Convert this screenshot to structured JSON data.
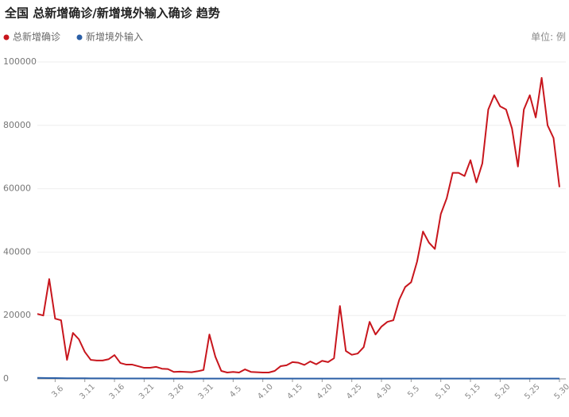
{
  "chart_data": {
    "type": "line",
    "title": "全国 总新增确诊/新增境外输入确诊 趋势",
    "unit": "单位: 例",
    "categories": [
      null,
      null,
      null,
      "3.6",
      null,
      null,
      null,
      null,
      "3.11",
      null,
      null,
      null,
      null,
      "3.16",
      null,
      null,
      null,
      null,
      "3.21",
      null,
      null,
      null,
      null,
      "3.26",
      null,
      null,
      null,
      null,
      "3.31",
      null,
      null,
      null,
      null,
      "4.5",
      null,
      null,
      null,
      null,
      "4.10",
      null,
      null,
      null,
      null,
      "4.15",
      null,
      null,
      null,
      null,
      "4.20",
      null,
      null,
      null,
      null,
      "4.25",
      null,
      null,
      null,
      null,
      "4.30",
      null,
      null,
      null,
      null,
      "5.5",
      null,
      null,
      null,
      null,
      "5.10",
      null,
      null,
      null,
      null,
      "5.15",
      null,
      null,
      null,
      null,
      "5.20",
      null,
      null,
      null,
      null,
      "5.25",
      null,
      null,
      null,
      null,
      "5.30"
    ],
    "series": [
      {
        "name": "总新增确诊",
        "color": "#c8161d",
        "values": [
          20500,
          20000,
          31500,
          19000,
          18500,
          6000,
          14500,
          12500,
          8500,
          6000,
          5800,
          5800,
          6200,
          7500,
          5000,
          4500,
          4500,
          4000,
          3500,
          3500,
          3800,
          3200,
          3100,
          2200,
          2300,
          2200,
          2100,
          2400,
          2800,
          14000,
          7000,
          2500,
          2000,
          2200,
          2000,
          3000,
          2200,
          2100,
          2000,
          2000,
          2500,
          4000,
          4300,
          5300,
          5100,
          4400,
          5500,
          4600,
          5700,
          5300,
          6500,
          23000,
          8800,
          7600,
          8000,
          10000,
          18000,
          14000,
          16500,
          18000,
          18500,
          25000,
          29000,
          30500,
          37000,
          46500,
          43000,
          41000,
          52000,
          57000,
          65000,
          65000,
          64000,
          69000,
          62000,
          68000,
          85000,
          89500,
          86000,
          85000,
          79000,
          67000,
          85000,
          89500,
          82500,
          95000,
          80000,
          76000,
          60500
        ]
      },
      {
        "name": "新增境外输入",
        "color": "#2b5fa6",
        "values": [
          300,
          280,
          260,
          240,
          220,
          200,
          200,
          180,
          180,
          160,
          160,
          150,
          150,
          140,
          140,
          130,
          130,
          120,
          120,
          110,
          110,
          100,
          100,
          100,
          100,
          100,
          100,
          100,
          100,
          100,
          100,
          100,
          100,
          100,
          100,
          100,
          100,
          100,
          100,
          100,
          100,
          100,
          100,
          100,
          100,
          100,
          100,
          100,
          100,
          100,
          100,
          100,
          100,
          100,
          100,
          100,
          100,
          100,
          100,
          100,
          100,
          100,
          100,
          100,
          100,
          100,
          100,
          100,
          100,
          100,
          100,
          100,
          100,
          100,
          100,
          100,
          100,
          100,
          100,
          100,
          100,
          100,
          100,
          100,
          100,
          100,
          100,
          100,
          100
        ]
      }
    ],
    "ylim": [
      0,
      100000
    ],
    "yticks": [
      0,
      20000,
      40000,
      60000,
      80000,
      100000
    ],
    "grid": true
  }
}
